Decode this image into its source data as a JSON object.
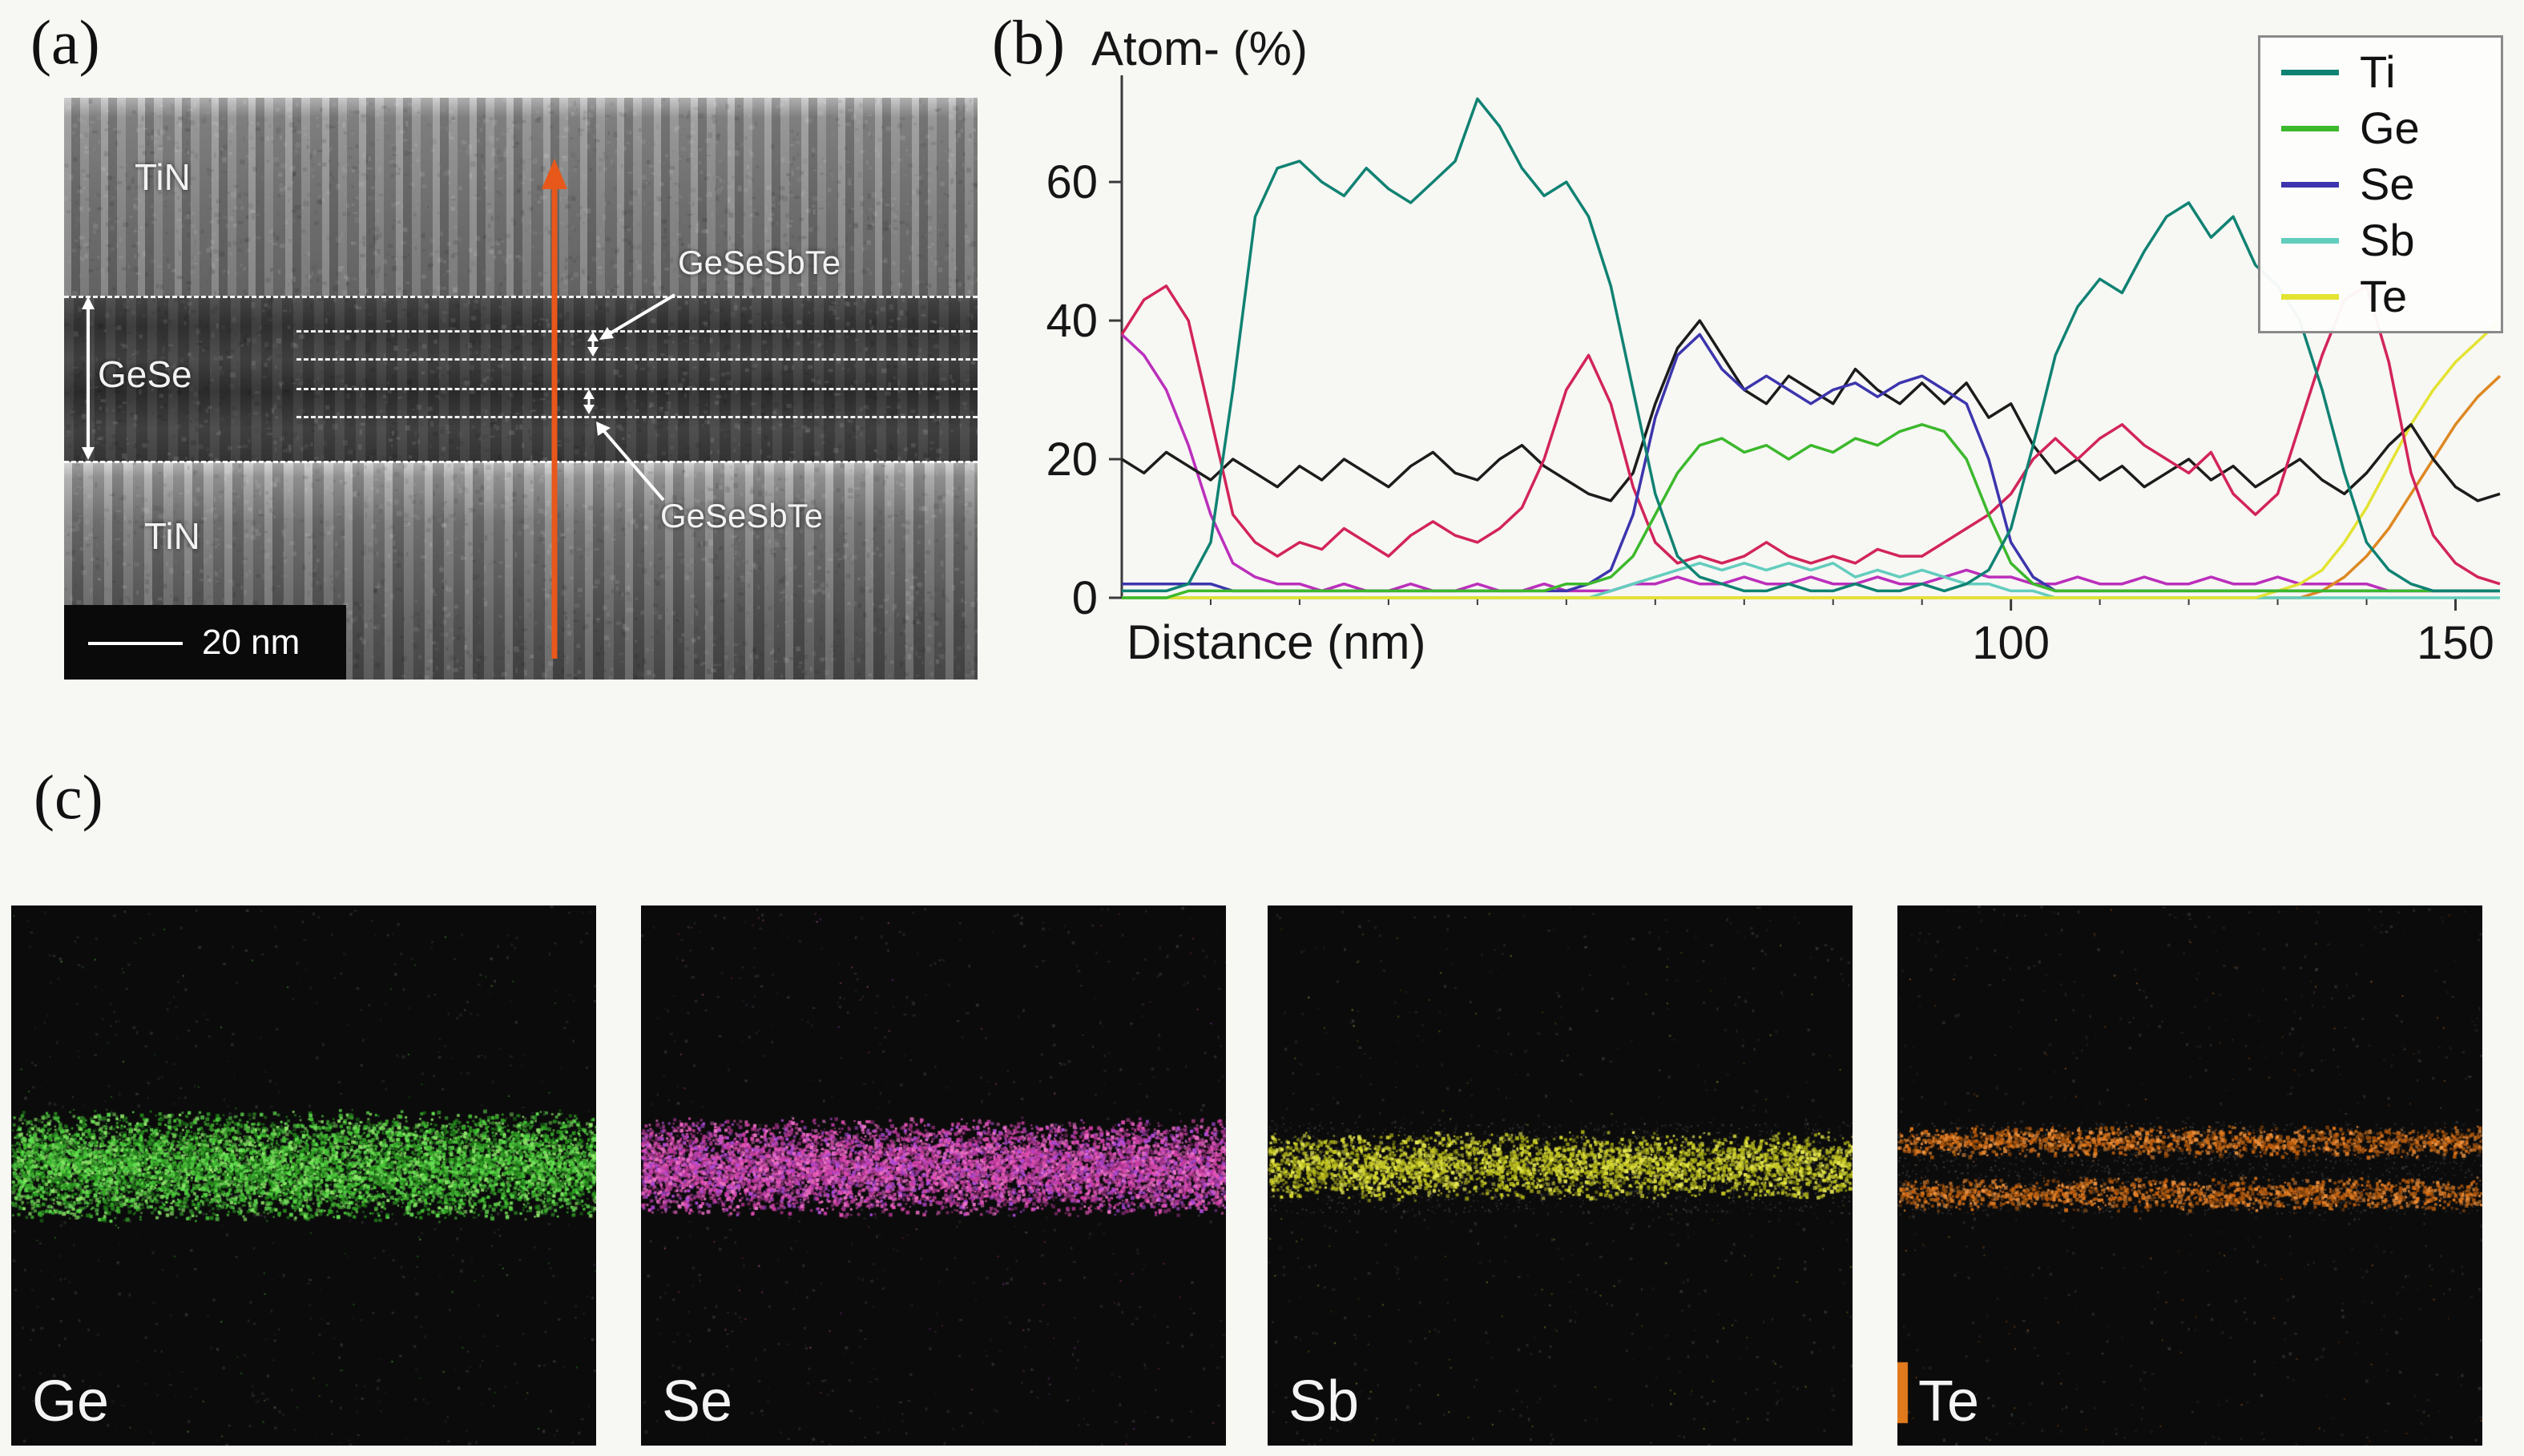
{
  "figure": {
    "panel_a": {
      "letter": "(a)",
      "tem": {
        "label_tin_top": "TiN",
        "label_tin_bottom": "TiN",
        "label_gese": "GeSe",
        "label_gst_top": "GeSeSbTe",
        "label_gst_bottom": "GeSeSbTe",
        "scale_bar": "20 nm",
        "arrow_color": "#e8581a"
      }
    },
    "panel_b": {
      "letter": "(b)"
    },
    "panel_c": {
      "letter": "(c)",
      "maps": [
        {
          "label": "Ge",
          "palette": [
            "#46c636",
            "#2f9e24",
            "#63e052",
            "#1f7a18",
            "#8fe86a"
          ],
          "bands": [
            [
              0.375,
              0.585
            ]
          ],
          "density": 9000
        },
        {
          "label": "Se",
          "palette": [
            "#e353b5",
            "#c93ba3",
            "#f274cb",
            "#9c3387",
            "#b04ad8"
          ],
          "bands": [
            [
              0.39,
              0.575
            ]
          ],
          "density": 8500
        },
        {
          "label": "Sb",
          "palette": [
            "#d8da30",
            "#bfc21e",
            "#e9ea55",
            "#9fa314"
          ],
          "bands": [
            [
              0.415,
              0.545
            ]
          ],
          "density": 3800,
          "gray_band": [
            0.4,
            0.57
          ]
        },
        {
          "label": "Te",
          "palette": [
            "#e0791c",
            "#c25f0e",
            "#f09440",
            "#9c4f0c"
          ],
          "bands": [
            [
              0.405,
              0.465
            ],
            [
              0.5,
              0.565
            ]
          ],
          "density": 3200,
          "gray_band": [
            0.4,
            0.57
          ],
          "corner_mark": "#e07a1c"
        }
      ]
    }
  },
  "chart_data": {
    "type": "line",
    "title": "Atom- (%)",
    "xlabel": "Distance (nm)",
    "ylabel": "",
    "xlim": [
      0,
      155
    ],
    "ylim": [
      0,
      74
    ],
    "yticks": [
      0,
      20,
      40,
      60
    ],
    "xticks": [
      100,
      150
    ],
    "xticks_minor": [
      10,
      20,
      30,
      40,
      50,
      60,
      70,
      80,
      90,
      110,
      120,
      130,
      140
    ],
    "x_step": 2.5,
    "grid": false,
    "legend_position": "top-right",
    "legend": [
      "Ti",
      "Ge",
      "Se",
      "Sb",
      "Te"
    ],
    "series": [
      {
        "name": "unlabeled-magenta",
        "color": "#bb2fbb",
        "in_legend": false,
        "values": [
          38,
          35,
          30,
          22,
          12,
          5,
          3,
          2,
          2,
          1,
          2,
          1,
          1,
          2,
          1,
          1,
          2,
          1,
          1,
          2,
          1,
          1,
          1,
          2,
          2,
          3,
          2,
          2,
          3,
          2,
          2,
          3,
          2,
          2,
          3,
          2,
          2,
          3,
          4,
          3,
          3,
          2,
          2,
          3,
          2,
          2,
          3,
          2,
          2,
          3,
          2,
          2,
          3,
          2,
          2,
          2,
          2,
          1,
          1,
          1,
          1,
          1,
          1
        ]
      },
      {
        "name": "unlabeled-orange",
        "color": "#dd8822",
        "in_legend": false,
        "values": [
          0,
          0,
          0,
          0,
          0,
          0,
          0,
          0,
          0,
          0,
          0,
          0,
          0,
          0,
          0,
          0,
          0,
          0,
          0,
          0,
          0,
          0,
          0,
          0,
          0,
          0,
          0,
          0,
          0,
          0,
          0,
          0,
          0,
          0,
          0,
          0,
          0,
          0,
          0,
          0,
          0,
          0,
          0,
          0,
          0,
          0,
          0,
          0,
          0,
          0,
          0,
          0,
          0,
          0,
          1,
          3,
          6,
          10,
          15,
          20,
          25,
          29,
          32
        ]
      },
      {
        "name": "Sb",
        "color": "#63cdbd",
        "in_legend": true,
        "values": [
          0,
          0,
          0,
          0,
          0,
          0,
          0,
          0,
          0,
          0,
          0,
          0,
          0,
          0,
          0,
          0,
          0,
          0,
          0,
          0,
          0,
          0,
          1,
          2,
          3,
          4,
          5,
          4,
          5,
          4,
          5,
          4,
          5,
          3,
          4,
          3,
          4,
          3,
          2,
          2,
          1,
          1,
          0,
          0,
          0,
          0,
          0,
          0,
          0,
          0,
          0,
          0,
          0,
          0,
          0,
          0,
          0,
          0,
          0,
          0,
          0,
          0,
          0
        ]
      },
      {
        "name": "Te",
        "color": "#e3e331",
        "in_legend": true,
        "values": [
          0,
          0,
          0,
          0,
          0,
          0,
          0,
          0,
          0,
          0,
          0,
          0,
          0,
          0,
          0,
          0,
          0,
          0,
          0,
          0,
          0,
          0,
          0,
          0,
          0,
          0,
          0,
          0,
          0,
          0,
          0,
          0,
          0,
          0,
          0,
          0,
          0,
          0,
          0,
          0,
          0,
          0,
          0,
          0,
          0,
          0,
          0,
          0,
          0,
          0,
          0,
          0,
          1,
          2,
          4,
          8,
          13,
          19,
          25,
          30,
          34,
          37,
          40
        ]
      },
      {
        "name": "unlabeled-black",
        "color": "#1c1c1c",
        "in_legend": false,
        "values": [
          20,
          18,
          21,
          19,
          17,
          20,
          18,
          16,
          19,
          17,
          20,
          18,
          16,
          19,
          21,
          18,
          17,
          20,
          22,
          19,
          17,
          15,
          14,
          18,
          28,
          36,
          40,
          35,
          30,
          28,
          32,
          30,
          28,
          33,
          30,
          28,
          31,
          28,
          31,
          26,
          28,
          22,
          18,
          20,
          17,
          19,
          16,
          18,
          20,
          17,
          19,
          16,
          18,
          20,
          17,
          15,
          18,
          22,
          25,
          20,
          16,
          14,
          15
        ]
      },
      {
        "name": "unlabeled-crimson",
        "color": "#d2245a",
        "in_legend": false,
        "values": [
          38,
          43,
          45,
          40,
          26,
          12,
          8,
          6,
          8,
          7,
          10,
          8,
          6,
          9,
          11,
          9,
          8,
          10,
          13,
          20,
          30,
          35,
          28,
          16,
          8,
          5,
          6,
          5,
          6,
          8,
          6,
          5,
          6,
          5,
          7,
          6,
          6,
          8,
          10,
          12,
          15,
          20,
          23,
          20,
          23,
          25,
          22,
          20,
          18,
          21,
          15,
          12,
          15,
          25,
          35,
          43,
          45,
          34,
          18,
          9,
          5,
          3,
          2
        ]
      },
      {
        "name": "Se",
        "color": "#3c35ad",
        "in_legend": true,
        "values": [
          2,
          2,
          2,
          2,
          2,
          1,
          1,
          1,
          1,
          1,
          1,
          1,
          1,
          1,
          1,
          1,
          1,
          1,
          1,
          1,
          1,
          2,
          4,
          12,
          26,
          35,
          38,
          33,
          30,
          32,
          30,
          28,
          30,
          31,
          29,
          31,
          32,
          30,
          28,
          20,
          8,
          3,
          1,
          1,
          1,
          1,
          1,
          1,
          1,
          1,
          1,
          1,
          1,
          1,
          1,
          1,
          1,
          1,
          1,
          1,
          1,
          1,
          1
        ]
      },
      {
        "name": "Ge",
        "color": "#3cb82c",
        "in_legend": true,
        "values": [
          0,
          0,
          0,
          1,
          1,
          1,
          1,
          1,
          1,
          1,
          1,
          1,
          1,
          1,
          1,
          1,
          1,
          1,
          1,
          1,
          2,
          2,
          3,
          6,
          12,
          18,
          22,
          23,
          21,
          22,
          20,
          22,
          21,
          23,
          22,
          24,
          25,
          24,
          20,
          12,
          5,
          2,
          1,
          1,
          1,
          1,
          1,
          1,
          1,
          1,
          1,
          1,
          1,
          1,
          1,
          1,
          1,
          1,
          1,
          1,
          1,
          1,
          1
        ]
      },
      {
        "name": "Ti",
        "color": "#0f8272",
        "in_legend": true,
        "values": [
          1,
          1,
          1,
          2,
          8,
          30,
          55,
          62,
          63,
          60,
          58,
          62,
          59,
          57,
          60,
          63,
          72,
          68,
          62,
          58,
          60,
          55,
          45,
          30,
          15,
          6,
          3,
          2,
          1,
          1,
          2,
          1,
          1,
          2,
          1,
          1,
          2,
          1,
          2,
          4,
          10,
          22,
          35,
          42,
          46,
          44,
          50,
          55,
          57,
          52,
          55,
          48,
          45,
          40,
          30,
          18,
          8,
          4,
          2,
          1,
          1,
          1,
          1
        ]
      }
    ]
  }
}
